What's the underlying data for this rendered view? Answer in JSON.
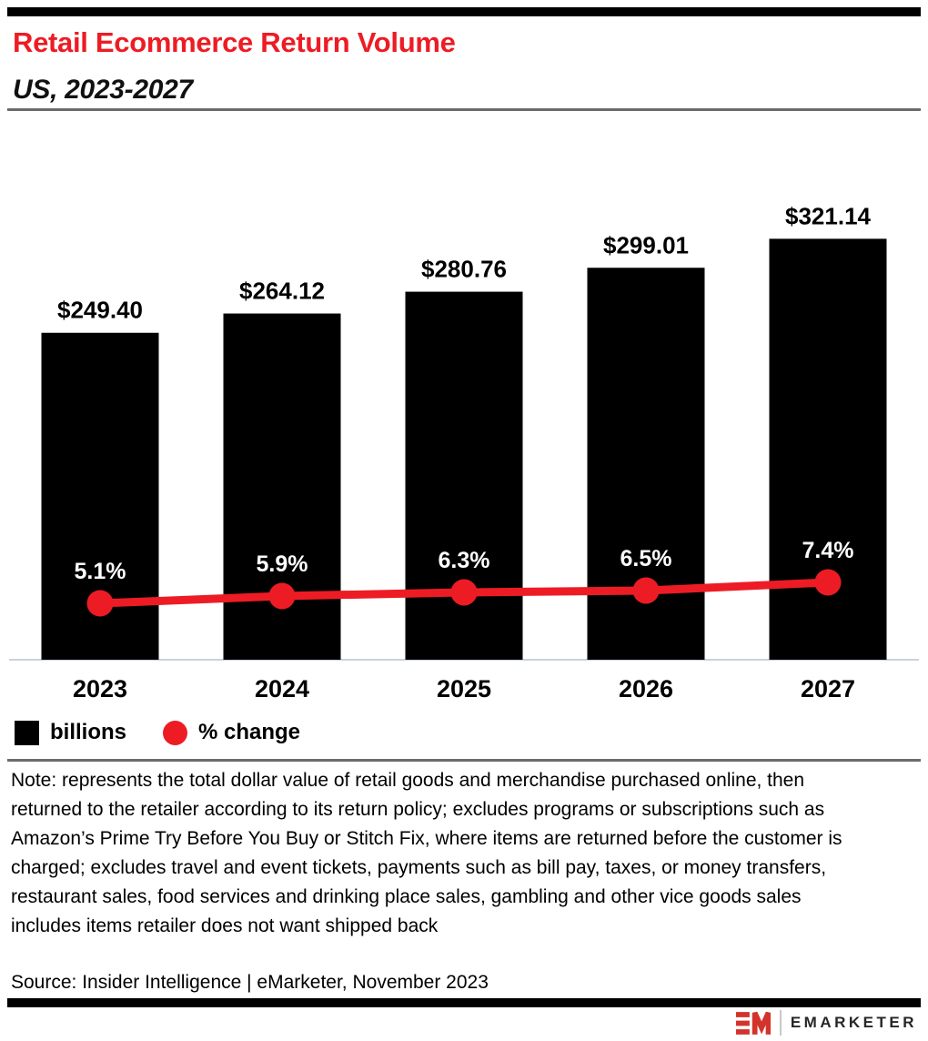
{
  "header": {
    "title": "Retail Ecommerce Return Volume",
    "subtitle": "US, 2023-2027"
  },
  "chart_data": {
    "type": "bar",
    "title": "Retail Ecommerce Return Volume",
    "subtitle": "US, 2023-2027",
    "categories": [
      "2023",
      "2024",
      "2025",
      "2026",
      "2027"
    ],
    "series": [
      {
        "name": "billions",
        "type": "bar",
        "values": [
          249.4,
          264.12,
          280.76,
          299.01,
          321.14
        ],
        "labels": [
          "$249.40",
          "$264.12",
          "$280.76",
          "$299.01",
          "$321.14"
        ],
        "color": "#000000"
      },
      {
        "name": "% change",
        "type": "line",
        "values": [
          5.1,
          5.9,
          6.3,
          6.5,
          7.4
        ],
        "labels": [
          "5.1%",
          "5.9%",
          "6.3%",
          "6.5%",
          "7.4%"
        ],
        "color": "#ED1C24"
      }
    ],
    "legend": [
      {
        "label": "billions",
        "swatch": "square",
        "color": "#000000"
      },
      {
        "label": "% change",
        "swatch": "circle",
        "color": "#ED1C24"
      }
    ],
    "legend_position": "bottom-left",
    "y_axis_visible": false,
    "grid": false,
    "xlabel": "",
    "ylabel": "",
    "bar_ylim": [
      0,
      350
    ]
  },
  "note": "Note: represents the total dollar value of retail goods and merchandise purchased online, then returned to the retailer according to its return policy; excludes programs or subscriptions such as Amazon’s Prime Try Before You Buy or Stitch Fix, where items are returned before the customer is charged; excludes travel and event tickets, payments such as bill pay, taxes, or money transfers, restaurant sales, food services and drinking place sales, gambling and other vice goods sales includes items retailer does not want shipped back",
  "source": "Source: Insider Intelligence | eMarketer, November 2023",
  "footer": {
    "brand": "EMARKETER"
  },
  "colors": {
    "accent_red": "#ED1C24",
    "bar_black": "#000000",
    "axis_line": "#c9d1de",
    "divider_gray": "#6b6b6b",
    "logo_red": "#D2342C",
    "brand_text": "#262626"
  }
}
